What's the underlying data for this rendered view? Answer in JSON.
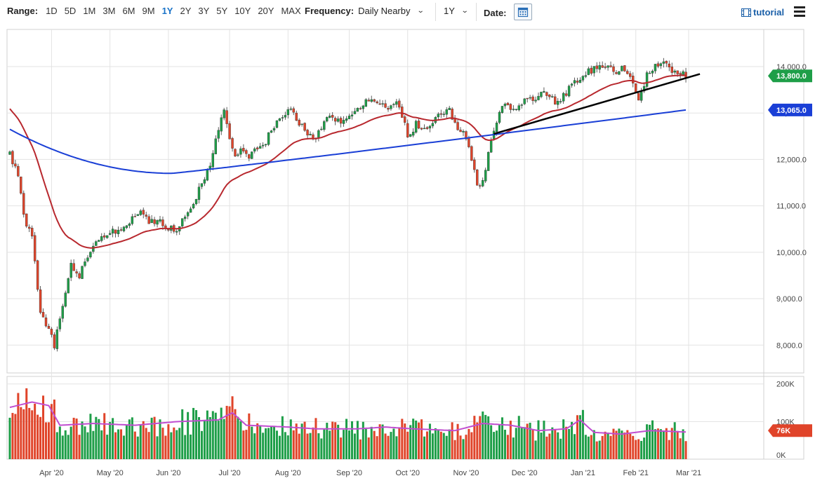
{
  "toolbar": {
    "range_label": "Range:",
    "ranges": [
      "1D",
      "5D",
      "1M",
      "3M",
      "6M",
      "9M",
      "1Y",
      "2Y",
      "3Y",
      "5Y",
      "10Y",
      "20Y",
      "MAX"
    ],
    "active_range": "1Y",
    "frequency_label": "Frequency:",
    "frequency_value": "Daily Nearby",
    "period_value": "1Y",
    "date_label": "Date:",
    "tutorial_label": "tutorial"
  },
  "chart_data": {
    "type": "candlestick",
    "x_tick_labels": [
      "Apr '20",
      "May '20",
      "Jun '20",
      "Jul '20",
      "Aug '20",
      "Sep '20",
      "Oct '20",
      "Nov '20",
      "Dec '20",
      "Jan '21",
      "Feb '21",
      "Mar '21"
    ],
    "price_axis": {
      "ticks": [
        8000,
        9000,
        10000,
        11000,
        12000,
        13000,
        14000
      ],
      "tick_labels": [
        "8,000.0",
        "9,000.0",
        "10,000.0",
        "11,000.0",
        "12,000.0",
        "13,000.0",
        "14,000.0"
      ],
      "range": [
        7400,
        14800
      ]
    },
    "volume_axis": {
      "ticks": [
        0,
        100000,
        200000
      ],
      "tick_labels": [
        "0K",
        "100K",
        "200K"
      ],
      "range": [
        0,
        220000
      ]
    },
    "last_price_label": "13,800.0",
    "ma200_label": "13,065.0",
    "last_volume_label": "76K",
    "colors": {
      "up": "#1e9e48",
      "down": "#e0442a",
      "ma50": "#b8282e",
      "ma200": "#1a3fd6",
      "trendline": "#000000",
      "volume_ma": "#c04dd0",
      "last_price_badge": "#1e9e48",
      "ma200_badge": "#1a3fd6",
      "volume_badge": "#e0442a",
      "grid": "#e3e3e3"
    },
    "anchors": [
      [
        0,
        12100
      ],
      [
        3,
        11650
      ],
      [
        5,
        10800
      ],
      [
        8,
        10300
      ],
      [
        11,
        8700
      ],
      [
        14,
        8300
      ],
      [
        16,
        8000
      ],
      [
        18,
        8550
      ],
      [
        20,
        9100
      ],
      [
        22,
        9700
      ],
      [
        25,
        9500
      ],
      [
        28,
        9900
      ],
      [
        32,
        10300
      ],
      [
        36,
        10450
      ],
      [
        40,
        10400
      ],
      [
        44,
        10700
      ],
      [
        47,
        10900
      ],
      [
        50,
        10600
      ],
      [
        53,
        10700
      ],
      [
        57,
        10550
      ],
      [
        60,
        10400
      ],
      [
        63,
        10800
      ],
      [
        66,
        11050
      ],
      [
        69,
        11500
      ],
      [
        72,
        11900
      ],
      [
        75,
        12700
      ],
      [
        77,
        13000
      ],
      [
        79,
        12400
      ],
      [
        81,
        12000
      ],
      [
        83,
        12300
      ],
      [
        86,
        12100
      ],
      [
        89,
        12200
      ],
      [
        92,
        12400
      ],
      [
        95,
        12700
      ],
      [
        98,
        12900
      ],
      [
        101,
        13050
      ],
      [
        104,
        12800
      ],
      [
        107,
        12500
      ],
      [
        110,
        12450
      ],
      [
        113,
        12800
      ],
      [
        116,
        12950
      ],
      [
        119,
        12800
      ],
      [
        122,
        13000
      ],
      [
        125,
        13100
      ],
      [
        128,
        13250
      ],
      [
        131,
        13200
      ],
      [
        134,
        13150
      ],
      [
        137,
        13100
      ],
      [
        140,
        13200
      ],
      [
        143,
        12500
      ],
      [
        146,
        12750
      ],
      [
        149,
        12600
      ],
      [
        152,
        12800
      ],
      [
        155,
        13000
      ],
      [
        158,
        13050
      ],
      [
        161,
        12700
      ],
      [
        164,
        12500
      ],
      [
        166,
        11900
      ],
      [
        168,
        11500
      ],
      [
        170,
        11500
      ],
      [
        172,
        12200
      ],
      [
        174,
        12600
      ],
      [
        176,
        13000
      ],
      [
        178,
        13150
      ],
      [
        181,
        13100
      ],
      [
        184,
        13200
      ],
      [
        187,
        13300
      ],
      [
        190,
        13350
      ],
      [
        193,
        13450
      ],
      [
        196,
        13250
      ],
      [
        199,
        13350
      ],
      [
        202,
        13600
      ],
      [
        205,
        13750
      ],
      [
        208,
        13900
      ],
      [
        211,
        13950
      ],
      [
        214,
        14000
      ],
      [
        217,
        13900
      ],
      [
        220,
        13950
      ],
      [
        223,
        13750
      ],
      [
        226,
        13350
      ],
      [
        229,
        13800
      ],
      [
        232,
        14050
      ],
      [
        235,
        14050
      ],
      [
        238,
        13950
      ],
      [
        241,
        13900
      ],
      [
        243,
        13800
      ]
    ],
    "volume_anchors": [
      [
        0,
        145000
      ],
      [
        8,
        160000
      ],
      [
        14,
        150000
      ],
      [
        18,
        95000
      ],
      [
        30,
        100000
      ],
      [
        45,
        95000
      ],
      [
        60,
        105000
      ],
      [
        75,
        110000
      ],
      [
        80,
        130000
      ],
      [
        85,
        95000
      ],
      [
        100,
        90000
      ],
      [
        110,
        85000
      ],
      [
        125,
        85000
      ],
      [
        135,
        90000
      ],
      [
        145,
        85000
      ],
      [
        160,
        80000
      ],
      [
        170,
        100000
      ],
      [
        180,
        95000
      ],
      [
        190,
        80000
      ],
      [
        200,
        85000
      ],
      [
        205,
        110000
      ],
      [
        210,
        75000
      ],
      [
        220,
        70000
      ],
      [
        230,
        80000
      ],
      [
        243,
        76000
      ]
    ],
    "ma200_start": 12650,
    "ma200_min": 11700,
    "ma200_end": 13065,
    "ma50_start": 13150,
    "ma50_end": 13750,
    "trendline": [
      [
        174,
        12550
      ],
      [
        243,
        13750
      ]
    ],
    "bars": 244
  }
}
